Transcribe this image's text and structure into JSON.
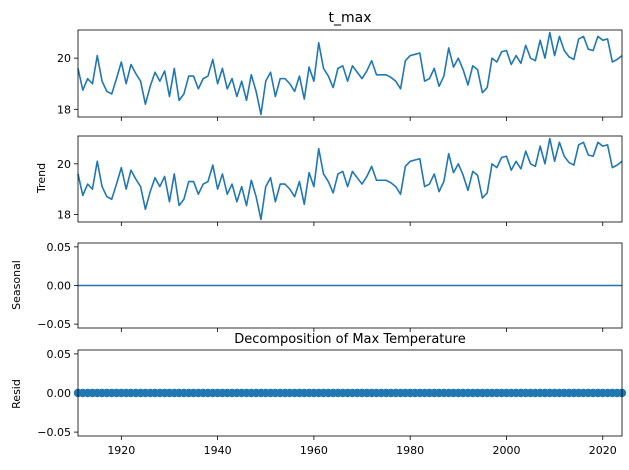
{
  "chart_data": [
    {
      "type": "line",
      "title": "t_max",
      "ylabel": "",
      "xlim": [
        1911,
        2024
      ],
      "ylim": [
        17.7,
        21.1
      ],
      "y_ticks": [
        "18",
        "20"
      ],
      "x_ticks": [
        "1920",
        "1940",
        "1960",
        "1980",
        "2000",
        "2020"
      ],
      "x_tick_labels_visible": false,
      "series": [
        {
          "name": "t_max",
          "x": [
            1911,
            1912,
            1913,
            1914,
            1915,
            1916,
            1917,
            1918,
            1919,
            1920,
            1921,
            1922,
            1923,
            1924,
            1925,
            1926,
            1927,
            1928,
            1929,
            1930,
            1931,
            1932,
            1933,
            1934,
            1935,
            1936,
            1937,
            1938,
            1939,
            1940,
            1941,
            1942,
            1943,
            1944,
            1945,
            1946,
            1947,
            1948,
            1949,
            1950,
            1951,
            1952,
            1953,
            1954,
            1955,
            1956,
            1957,
            1958,
            1959,
            1960,
            1961,
            1962,
            1963,
            1964,
            1965,
            1966,
            1967,
            1968,
            1969,
            1970,
            1971,
            1972,
            1973,
            1974,
            1975,
            1976,
            1977,
            1978,
            1979,
            1980,
            1981,
            1982,
            1983,
            1984,
            1985,
            1986,
            1987,
            1988,
            1989,
            1990,
            1991,
            1992,
            1993,
            1994,
            1995,
            1996,
            1997,
            1998,
            1999,
            2000,
            2001,
            2002,
            2003,
            2004,
            2005,
            2006,
            2007,
            2008,
            2009,
            2010,
            2011,
            2012,
            2013,
            2014,
            2015,
            2016,
            2017,
            2018,
            2019,
            2020,
            2021,
            2022,
            2023,
            2024
          ],
          "values": [
            19.6,
            18.75,
            19.2,
            19.0,
            20.1,
            19.1,
            18.7,
            18.6,
            19.2,
            19.85,
            19.0,
            19.75,
            19.4,
            19.1,
            18.2,
            18.9,
            19.45,
            19.1,
            19.5,
            18.5,
            19.6,
            18.35,
            18.6,
            19.3,
            19.3,
            18.8,
            19.2,
            19.3,
            19.95,
            19.0,
            19.6,
            18.8,
            19.2,
            18.5,
            19.1,
            18.35,
            19.35,
            18.7,
            17.8,
            19.1,
            19.45,
            18.5,
            19.2,
            19.2,
            19.0,
            18.7,
            19.3,
            18.4,
            19.65,
            19.1,
            20.6,
            19.6,
            19.3,
            18.85,
            19.6,
            19.7,
            19.1,
            19.7,
            19.45,
            19.2,
            19.5,
            19.9,
            19.35,
            19.35,
            19.35,
            19.25,
            19.1,
            18.8,
            19.9,
            20.1,
            20.15,
            20.2,
            19.1,
            19.2,
            19.6,
            18.9,
            19.3,
            20.4,
            19.65,
            20.0,
            19.55,
            18.95,
            19.7,
            19.55,
            18.65,
            18.85,
            20.0,
            19.85,
            20.25,
            20.3,
            19.75,
            20.1,
            19.8,
            20.5,
            20.0,
            19.9,
            20.7,
            20.0,
            21.0,
            20.1,
            20.85,
            20.3,
            20.05,
            19.95,
            20.75,
            20.85,
            20.35,
            20.3,
            20.85,
            20.7,
            20.75,
            19.85,
            19.95,
            20.1
          ]
        }
      ]
    },
    {
      "type": "line",
      "title": "",
      "ylabel": "Trend",
      "xlim": [
        1911,
        2024
      ],
      "ylim": [
        17.7,
        21.1
      ],
      "y_ticks": [
        "18",
        "20"
      ],
      "x_ticks": [
        "1920",
        "1940",
        "1960",
        "1980",
        "2000",
        "2020"
      ],
      "x_tick_labels_visible": false,
      "series": [
        {
          "name": "trend",
          "same_as": "t_max",
          "values": [
            19.6,
            18.75,
            19.2,
            19.0,
            20.1,
            19.1,
            18.7,
            18.6,
            19.2,
            19.85,
            19.0,
            19.75,
            19.4,
            19.1,
            18.2,
            18.9,
            19.45,
            19.1,
            19.5,
            18.5,
            19.6,
            18.35,
            18.6,
            19.3,
            19.3,
            18.8,
            19.2,
            19.3,
            19.95,
            19.0,
            19.6,
            18.8,
            19.2,
            18.5,
            19.1,
            18.35,
            19.35,
            18.7,
            17.8,
            19.1,
            19.45,
            18.5,
            19.2,
            19.2,
            19.0,
            18.7,
            19.3,
            18.4,
            19.65,
            19.1,
            20.6,
            19.6,
            19.3,
            18.85,
            19.6,
            19.7,
            19.1,
            19.7,
            19.45,
            19.2,
            19.5,
            19.9,
            19.35,
            19.35,
            19.35,
            19.25,
            19.1,
            18.8,
            19.9,
            20.1,
            20.15,
            20.2,
            19.1,
            19.2,
            19.6,
            18.9,
            19.3,
            20.4,
            19.65,
            20.0,
            19.55,
            18.95,
            19.7,
            19.55,
            18.65,
            18.85,
            20.0,
            19.85,
            20.25,
            20.3,
            19.75,
            20.1,
            19.8,
            20.5,
            20.0,
            19.9,
            20.7,
            20.0,
            21.0,
            20.1,
            20.85,
            20.3,
            20.05,
            19.95,
            20.75,
            20.85,
            20.35,
            20.3,
            20.85,
            20.7,
            20.75,
            19.85,
            19.95,
            20.1
          ]
        }
      ]
    },
    {
      "type": "line",
      "title": "",
      "ylabel": "Seasonal",
      "xlim": [
        1911,
        2024
      ],
      "ylim": [
        -0.055,
        0.055
      ],
      "y_ticks": [
        "0.05",
        "0.00",
        "−0.05"
      ],
      "y_tick_values": [
        0.05,
        0.0,
        -0.05
      ],
      "x_ticks": [
        "1920",
        "1940",
        "1960",
        "1980",
        "2000",
        "2020"
      ],
      "x_tick_labels_visible": false,
      "series": [
        {
          "name": "seasonal",
          "constant": 0.0
        }
      ]
    },
    {
      "type": "scatter",
      "title": "Decomposition of Max Temperature",
      "ylabel": "Resid",
      "xlim": [
        1911,
        2024
      ],
      "ylim": [
        -0.055,
        0.055
      ],
      "y_ticks": [
        "0.05",
        "0.00",
        "−0.05"
      ],
      "y_tick_values": [
        0.05,
        0.0,
        -0.05
      ],
      "x_ticks": [
        "1920",
        "1940",
        "1960",
        "1980",
        "2000",
        "2020"
      ],
      "x_tick_values": [
        1920,
        1940,
        1960,
        1980,
        2000,
        2020
      ],
      "x_tick_labels_visible": true,
      "series": [
        {
          "name": "resid",
          "constant": 0.0,
          "x_start": 1911,
          "x_end": 2024
        }
      ]
    }
  ],
  "colors": {
    "line": "#1f77b4",
    "axis": "#000000"
  }
}
